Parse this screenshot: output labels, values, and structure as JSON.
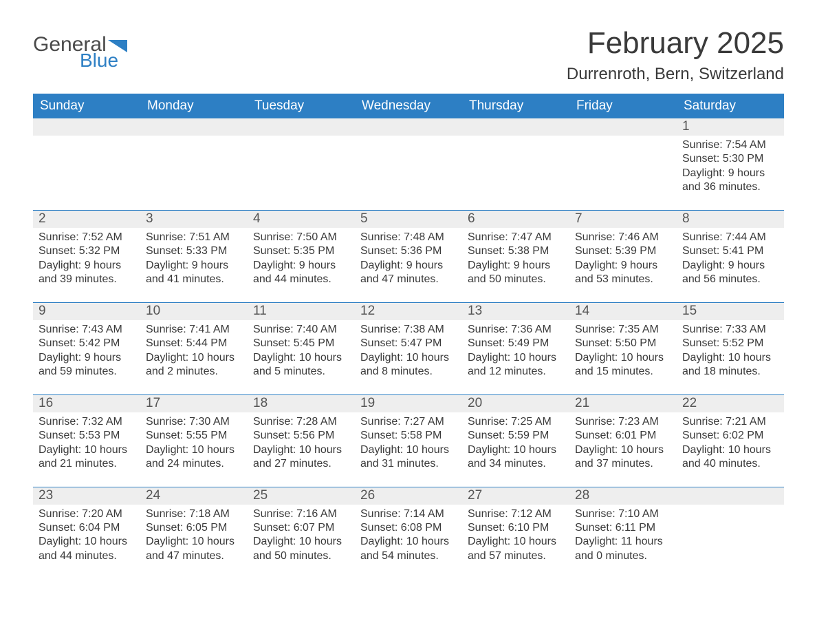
{
  "logo": {
    "text1": "General",
    "text2": "Blue",
    "shape_color": "#2d7fc4"
  },
  "header": {
    "month_title": "February 2025",
    "location": "Durrenroth, Bern, Switzerland"
  },
  "colors": {
    "header_bg": "#2d7fc4",
    "header_text": "#ffffff",
    "band_bg": "#eeeeee",
    "rule": "#2d7fc4",
    "body_text": "#3a3a3a",
    "page_bg": "#ffffff"
  },
  "typography": {
    "month_title_pt": 44,
    "location_pt": 24,
    "dow_pt": 19,
    "daynum_pt": 19,
    "body_pt": 16,
    "family": "Segoe UI / Arial"
  },
  "calendar": {
    "type": "calendar-table",
    "columns": [
      "Sunday",
      "Monday",
      "Tuesday",
      "Wednesday",
      "Thursday",
      "Friday",
      "Saturday"
    ],
    "weeks": [
      [
        null,
        null,
        null,
        null,
        null,
        null,
        {
          "n": "1",
          "sunrise": "Sunrise: 7:54 AM",
          "sunset": "Sunset: 5:30 PM",
          "daylight": "Daylight: 9 hours and 36 minutes."
        }
      ],
      [
        {
          "n": "2",
          "sunrise": "Sunrise: 7:52 AM",
          "sunset": "Sunset: 5:32 PM",
          "daylight": "Daylight: 9 hours and 39 minutes."
        },
        {
          "n": "3",
          "sunrise": "Sunrise: 7:51 AM",
          "sunset": "Sunset: 5:33 PM",
          "daylight": "Daylight: 9 hours and 41 minutes."
        },
        {
          "n": "4",
          "sunrise": "Sunrise: 7:50 AM",
          "sunset": "Sunset: 5:35 PM",
          "daylight": "Daylight: 9 hours and 44 minutes."
        },
        {
          "n": "5",
          "sunrise": "Sunrise: 7:48 AM",
          "sunset": "Sunset: 5:36 PM",
          "daylight": "Daylight: 9 hours and 47 minutes."
        },
        {
          "n": "6",
          "sunrise": "Sunrise: 7:47 AM",
          "sunset": "Sunset: 5:38 PM",
          "daylight": "Daylight: 9 hours and 50 minutes."
        },
        {
          "n": "7",
          "sunrise": "Sunrise: 7:46 AM",
          "sunset": "Sunset: 5:39 PM",
          "daylight": "Daylight: 9 hours and 53 minutes."
        },
        {
          "n": "8",
          "sunrise": "Sunrise: 7:44 AM",
          "sunset": "Sunset: 5:41 PM",
          "daylight": "Daylight: 9 hours and 56 minutes."
        }
      ],
      [
        {
          "n": "9",
          "sunrise": "Sunrise: 7:43 AM",
          "sunset": "Sunset: 5:42 PM",
          "daylight": "Daylight: 9 hours and 59 minutes."
        },
        {
          "n": "10",
          "sunrise": "Sunrise: 7:41 AM",
          "sunset": "Sunset: 5:44 PM",
          "daylight": "Daylight: 10 hours and 2 minutes."
        },
        {
          "n": "11",
          "sunrise": "Sunrise: 7:40 AM",
          "sunset": "Sunset: 5:45 PM",
          "daylight": "Daylight: 10 hours and 5 minutes."
        },
        {
          "n": "12",
          "sunrise": "Sunrise: 7:38 AM",
          "sunset": "Sunset: 5:47 PM",
          "daylight": "Daylight: 10 hours and 8 minutes."
        },
        {
          "n": "13",
          "sunrise": "Sunrise: 7:36 AM",
          "sunset": "Sunset: 5:49 PM",
          "daylight": "Daylight: 10 hours and 12 minutes."
        },
        {
          "n": "14",
          "sunrise": "Sunrise: 7:35 AM",
          "sunset": "Sunset: 5:50 PM",
          "daylight": "Daylight: 10 hours and 15 minutes."
        },
        {
          "n": "15",
          "sunrise": "Sunrise: 7:33 AM",
          "sunset": "Sunset: 5:52 PM",
          "daylight": "Daylight: 10 hours and 18 minutes."
        }
      ],
      [
        {
          "n": "16",
          "sunrise": "Sunrise: 7:32 AM",
          "sunset": "Sunset: 5:53 PM",
          "daylight": "Daylight: 10 hours and 21 minutes."
        },
        {
          "n": "17",
          "sunrise": "Sunrise: 7:30 AM",
          "sunset": "Sunset: 5:55 PM",
          "daylight": "Daylight: 10 hours and 24 minutes."
        },
        {
          "n": "18",
          "sunrise": "Sunrise: 7:28 AM",
          "sunset": "Sunset: 5:56 PM",
          "daylight": "Daylight: 10 hours and 27 minutes."
        },
        {
          "n": "19",
          "sunrise": "Sunrise: 7:27 AM",
          "sunset": "Sunset: 5:58 PM",
          "daylight": "Daylight: 10 hours and 31 minutes."
        },
        {
          "n": "20",
          "sunrise": "Sunrise: 7:25 AM",
          "sunset": "Sunset: 5:59 PM",
          "daylight": "Daylight: 10 hours and 34 minutes."
        },
        {
          "n": "21",
          "sunrise": "Sunrise: 7:23 AM",
          "sunset": "Sunset: 6:01 PM",
          "daylight": "Daylight: 10 hours and 37 minutes."
        },
        {
          "n": "22",
          "sunrise": "Sunrise: 7:21 AM",
          "sunset": "Sunset: 6:02 PM",
          "daylight": "Daylight: 10 hours and 40 minutes."
        }
      ],
      [
        {
          "n": "23",
          "sunrise": "Sunrise: 7:20 AM",
          "sunset": "Sunset: 6:04 PM",
          "daylight": "Daylight: 10 hours and 44 minutes."
        },
        {
          "n": "24",
          "sunrise": "Sunrise: 7:18 AM",
          "sunset": "Sunset: 6:05 PM",
          "daylight": "Daylight: 10 hours and 47 minutes."
        },
        {
          "n": "25",
          "sunrise": "Sunrise: 7:16 AM",
          "sunset": "Sunset: 6:07 PM",
          "daylight": "Daylight: 10 hours and 50 minutes."
        },
        {
          "n": "26",
          "sunrise": "Sunrise: 7:14 AM",
          "sunset": "Sunset: 6:08 PM",
          "daylight": "Daylight: 10 hours and 54 minutes."
        },
        {
          "n": "27",
          "sunrise": "Sunrise: 7:12 AM",
          "sunset": "Sunset: 6:10 PM",
          "daylight": "Daylight: 10 hours and 57 minutes."
        },
        {
          "n": "28",
          "sunrise": "Sunrise: 7:10 AM",
          "sunset": "Sunset: 6:11 PM",
          "daylight": "Daylight: 11 hours and 0 minutes."
        },
        null
      ]
    ]
  }
}
